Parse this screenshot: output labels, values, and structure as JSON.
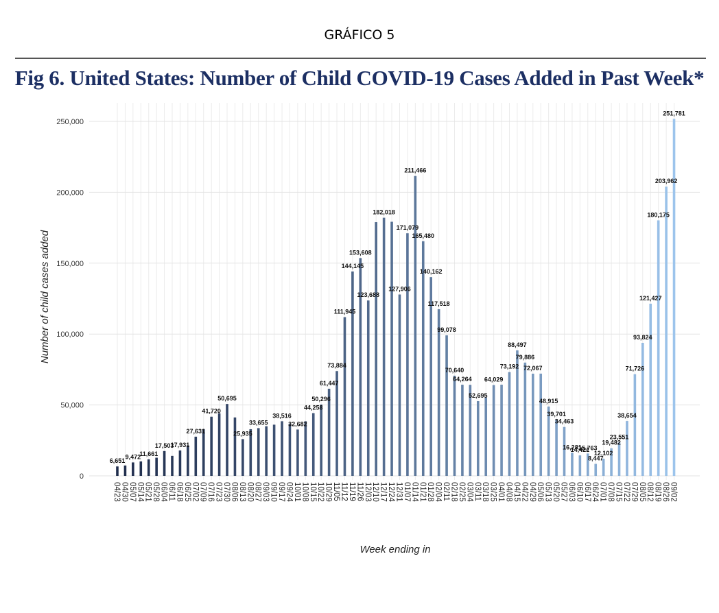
{
  "document": {
    "heading": "GRÁFICO 5"
  },
  "chart_data": {
    "type": "bar",
    "title": "Fig 6. United States: Number of Child COVID-19 Cases Added in Past Week*",
    "xlabel": "Week ending in",
    "ylabel": "Number of child cases added",
    "ylim": [
      0,
      255000
    ],
    "y_ticks": [
      0,
      50000,
      100000,
      150000,
      200000,
      250000
    ],
    "y_tick_labels": [
      "0",
      "50,000",
      "100,000",
      "150,000",
      "200,000",
      "250,000"
    ],
    "grid": true,
    "color_start": "#1f2d4c",
    "color_end": "#9cc4ec",
    "categories": [
      "04/23",
      "04/30",
      "05/07",
      "05/14",
      "05/21",
      "05/28",
      "06/04",
      "06/11",
      "06/18",
      "06/25",
      "07/02",
      "07/09",
      "07/16",
      "07/23",
      "07/30",
      "08/06",
      "08/13",
      "08/20",
      "08/27",
      "09/03",
      "09/10",
      "09/17",
      "09/24",
      "10/01",
      "10/08",
      "10/15",
      "10/22",
      "10/29",
      "11/05",
      "11/12",
      "11/19",
      "11/26",
      "12/03",
      "12/10",
      "12/17",
      "12/24",
      "12/31",
      "01/07",
      "01/14",
      "01/21",
      "01/28",
      "02/04",
      "02/11",
      "02/18",
      "02/25",
      "03/04",
      "03/11",
      "03/18",
      "03/25",
      "04/01",
      "04/08",
      "04/15",
      "04/22",
      "04/29",
      "05/06",
      "05/13",
      "05/20",
      "05/27",
      "06/03",
      "06/10",
      "06/17",
      "06/24",
      "07/01",
      "07/08",
      "07/15",
      "07/22",
      "07/29",
      "08/05",
      "08/12",
      "08/19",
      "08/26",
      "09/02"
    ],
    "values": [
      6651,
      7300,
      9472,
      10200,
      11661,
      12800,
      17503,
      14100,
      17931,
      21500,
      27631,
      33000,
      41720,
      44100,
      50695,
      41200,
      25935,
      32900,
      33655,
      35000,
      36100,
      38516,
      36800,
      32682,
      38500,
      44258,
      50296,
      61447,
      73884,
      111945,
      144145,
      153608,
      123688,
      178900,
      182018,
      179200,
      127906,
      171079,
      211466,
      165480,
      140162,
      117518,
      99078,
      70640,
      64264,
      64200,
      52695,
      55200,
      64029,
      64300,
      73192,
      88497,
      79886,
      72067,
      72100,
      48915,
      39701,
      34463,
      16281,
      14421,
      15763,
      8447,
      12102,
      19482,
      23551,
      38654,
      71726,
      93824,
      121427,
      180175,
      203962,
      251781
    ],
    "value_labels": [
      "6,651",
      "",
      "9,472",
      "",
      "11,661",
      "",
      "17,503",
      "",
      "17,931",
      "",
      "27,631",
      "",
      "41,720",
      "",
      "50,695",
      "",
      "25,935",
      "",
      "33,655",
      "",
      "",
      "38,516",
      "",
      "32,682",
      "",
      "44,258",
      "50,296",
      "61,447",
      "73,884",
      "111,945",
      "144,145",
      "153,608",
      "123,688",
      "",
      "182,018",
      "",
      "127,906",
      "171,079",
      "211,466",
      "165,480",
      "140,162",
      "117,518",
      "99,078",
      "70,640",
      "64,264",
      "",
      "52,695",
      "",
      "64,029",
      "",
      "73,192",
      "88,497",
      "79,886",
      "72,067",
      "",
      "48,915",
      "39,701",
      "34,463",
      "16,281",
      "14,421",
      "15,763",
      "8,447",
      "12,102",
      "19,482",
      "23,551",
      "38,654",
      "71,726",
      "93,824",
      "121,427",
      "180,175",
      "203,962",
      "251,781"
    ]
  }
}
